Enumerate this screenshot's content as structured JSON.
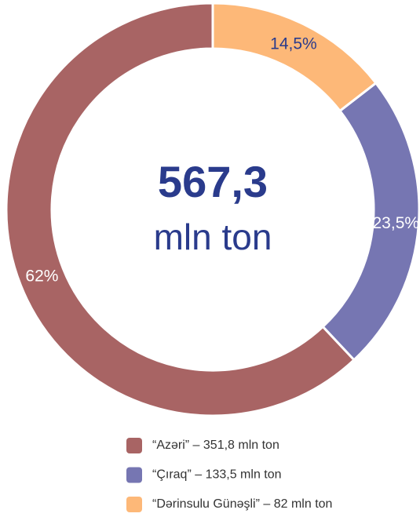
{
  "chart_data": {
    "type": "donut",
    "categories": [
      "“Azəri” – 351,8 mln ton",
      "“Çıraq” – 133,5 mln ton",
      "“Dərinsulu Günəşli” – 82 mln ton"
    ],
    "values": [
      62,
      23.5,
      14.5
    ],
    "value_labels": [
      "62%",
      "23,5%",
      "14,5%"
    ],
    "colors": [
      "#a86464",
      "#7676b2",
      "#fdb878"
    ],
    "center_value": "567,3",
    "center_unit": "mln ton"
  }
}
